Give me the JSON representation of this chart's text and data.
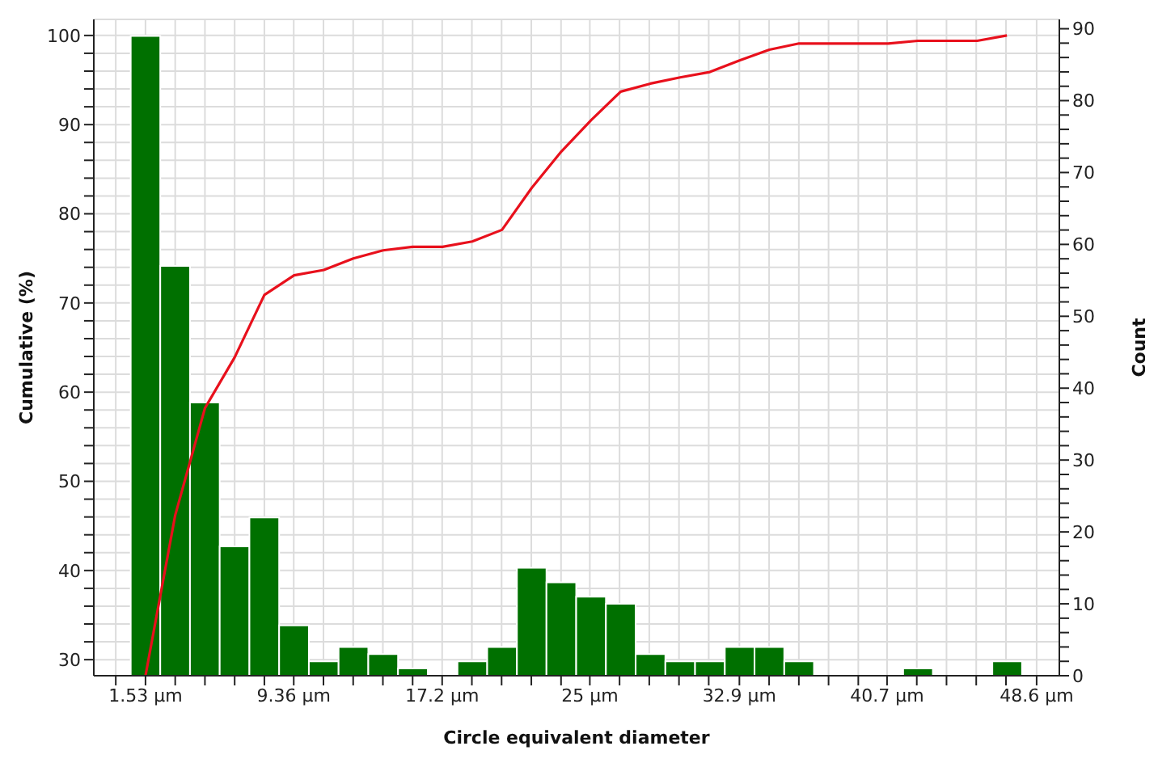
{
  "chart_data": {
    "type": "histogram",
    "xlabel": "Circle equivalent diameter",
    "ylabel": "Cumulative (%)",
    "y2label": "Count",
    "grid": true,
    "xlim": [
      -1.2,
      49.8
    ],
    "xticks": [
      {
        "value": -0.04,
        "label": null
      },
      {
        "value": 1.53,
        "label": "1.53 µm"
      },
      {
        "value": 3.1,
        "label": null
      },
      {
        "value": 4.67,
        "label": null
      },
      {
        "value": 6.24,
        "label": null
      },
      {
        "value": 7.81,
        "label": null
      },
      {
        "value": 9.36,
        "label": "9.36 µm"
      },
      {
        "value": 10.93,
        "label": null
      },
      {
        "value": 12.5,
        "label": null
      },
      {
        "value": 14.07,
        "label": null
      },
      {
        "value": 15.64,
        "label": null
      },
      {
        "value": 17.2,
        "label": "17.2 µm"
      },
      {
        "value": 18.77,
        "label": null
      },
      {
        "value": 20.34,
        "label": null
      },
      {
        "value": 21.91,
        "label": null
      },
      {
        "value": 23.48,
        "label": null
      },
      {
        "value": 25,
        "label": "25 µm"
      },
      {
        "value": 26.57,
        "label": null
      },
      {
        "value": 28.14,
        "label": null
      },
      {
        "value": 29.71,
        "label": null
      },
      {
        "value": 31.28,
        "label": null
      },
      {
        "value": 32.9,
        "label": "32.9 µm"
      },
      {
        "value": 34.47,
        "label": null
      },
      {
        "value": 36.04,
        "label": null
      },
      {
        "value": 37.61,
        "label": null
      },
      {
        "value": 39.18,
        "label": null
      },
      {
        "value": 40.7,
        "label": "40.7 µm"
      },
      {
        "value": 42.27,
        "label": null
      },
      {
        "value": 43.84,
        "label": null
      },
      {
        "value": 45.41,
        "label": null
      },
      {
        "value": 46.98,
        "label": null
      },
      {
        "value": 48.6,
        "label": "48.6 µm"
      }
    ],
    "ylim": [
      28.2,
      101.8
    ],
    "yticks": [
      30,
      {
        "value": 32,
        "label": null
      },
      {
        "value": 34,
        "label": null
      },
      {
        "value": 36,
        "label": null
      },
      {
        "value": 38,
        "label": null
      },
      40,
      {
        "value": 42,
        "label": null
      },
      {
        "value": 44,
        "label": null
      },
      {
        "value": 46,
        "label": null
      },
      {
        "value": 48,
        "label": null
      },
      50,
      {
        "value": 52,
        "label": null
      },
      {
        "value": 54,
        "label": null
      },
      {
        "value": 56,
        "label": null
      },
      {
        "value": 58,
        "label": null
      },
      60,
      {
        "value": 62,
        "label": null
      },
      {
        "value": 64,
        "label": null
      },
      {
        "value": 66,
        "label": null
      },
      {
        "value": 68,
        "label": null
      },
      70,
      {
        "value": 72,
        "label": null
      },
      {
        "value": 74,
        "label": null
      },
      {
        "value": 76,
        "label": null
      },
      {
        "value": 78,
        "label": null
      },
      80,
      {
        "value": 82,
        "label": null
      },
      {
        "value": 84,
        "label": null
      },
      {
        "value": 86,
        "label": null
      },
      {
        "value": 88,
        "label": null
      },
      90,
      {
        "value": 92,
        "label": null
      },
      {
        "value": 94,
        "label": null
      },
      {
        "value": 96,
        "label": null
      },
      {
        "value": 98,
        "label": null
      },
      100
    ],
    "y2lim": [
      0,
      91.3
    ],
    "y2ticks": [
      0,
      {
        "value": 2,
        "label": null
      },
      {
        "value": 4,
        "label": null
      },
      {
        "value": 6,
        "label": null
      },
      {
        "value": 8,
        "label": null
      },
      10,
      {
        "value": 12,
        "label": null
      },
      {
        "value": 14,
        "label": null
      },
      {
        "value": 16,
        "label": null
      },
      {
        "value": 18,
        "label": null
      },
      20,
      {
        "value": 22,
        "label": null
      },
      {
        "value": 24,
        "label": null
      },
      {
        "value": 26,
        "label": null
      },
      {
        "value": 28,
        "label": null
      },
      30,
      {
        "value": 32,
        "label": null
      },
      {
        "value": 34,
        "label": null
      },
      {
        "value": 36,
        "label": null
      },
      {
        "value": 38,
        "label": null
      },
      40,
      {
        "value": 42,
        "label": null
      },
      {
        "value": 44,
        "label": null
      },
      {
        "value": 46,
        "label": null
      },
      {
        "value": 48,
        "label": null
      },
      50,
      {
        "value": 52,
        "label": null
      },
      {
        "value": 54,
        "label": null
      },
      {
        "value": 56,
        "label": null
      },
      {
        "value": 58,
        "label": null
      },
      60,
      {
        "value": 62,
        "label": null
      },
      {
        "value": 64,
        "label": null
      },
      {
        "value": 66,
        "label": null
      },
      {
        "value": 68,
        "label": null
      },
      70,
      {
        "value": 72,
        "label": null
      },
      {
        "value": 74,
        "label": null
      },
      {
        "value": 76,
        "label": null
      },
      {
        "value": 78,
        "label": null
      },
      80,
      {
        "value": 82,
        "label": null
      },
      {
        "value": 84,
        "label": null
      },
      {
        "value": 86,
        "label": null
      },
      {
        "value": 88,
        "label": null
      },
      90
    ],
    "series": [
      {
        "color": "#007000",
        "axis": "y2",
        "bins": [
          0.75,
          2.31,
          3.88,
          5.45,
          7.02,
          8.59,
          10.16,
          11.73,
          13.3,
          14.87,
          16.44,
          18.01,
          19.58,
          21.15,
          22.71,
          24.28,
          25.85,
          27.42,
          28.99,
          30.56,
          32.13,
          33.7,
          35.27,
          36.84,
          38.41,
          39.98,
          41.55,
          43.12,
          44.69,
          46.26,
          47.83
        ],
        "values": [
          89,
          57,
          38,
          18,
          22,
          7,
          2,
          4,
          3,
          1,
          0,
          2,
          4,
          15,
          13,
          11,
          10,
          3,
          2,
          2,
          4,
          4,
          2,
          0,
          0,
          0,
          1,
          0,
          0,
          2
        ]
      },
      {
        "type": "line",
        "color": "#e8101c",
        "x": [
          1.53,
          3.1,
          4.67,
          6.24,
          7.81,
          9.38,
          10.95,
          12.51,
          14.08,
          15.65,
          17.22,
          18.79,
          20.36,
          21.93,
          23.5,
          25.07,
          26.63,
          28.2,
          29.77,
          31.34,
          32.91,
          34.48,
          36.05,
          37.62,
          39.19,
          40.76,
          42.32,
          43.89,
          45.46,
          47.03
        ],
        "values": [
          28.2,
          46.2,
          58.2,
          63.9,
          70.9,
          73.1,
          73.7,
          75,
          75.9,
          76.3,
          76.3,
          76.9,
          78.2,
          82.9,
          87,
          90.5,
          93.7,
          94.6,
          95.3,
          95.9,
          97.2,
          98.4,
          99.1,
          99.1,
          99.1,
          99.1,
          99.4,
          99.4,
          99.4,
          100
        ]
      }
    ]
  }
}
